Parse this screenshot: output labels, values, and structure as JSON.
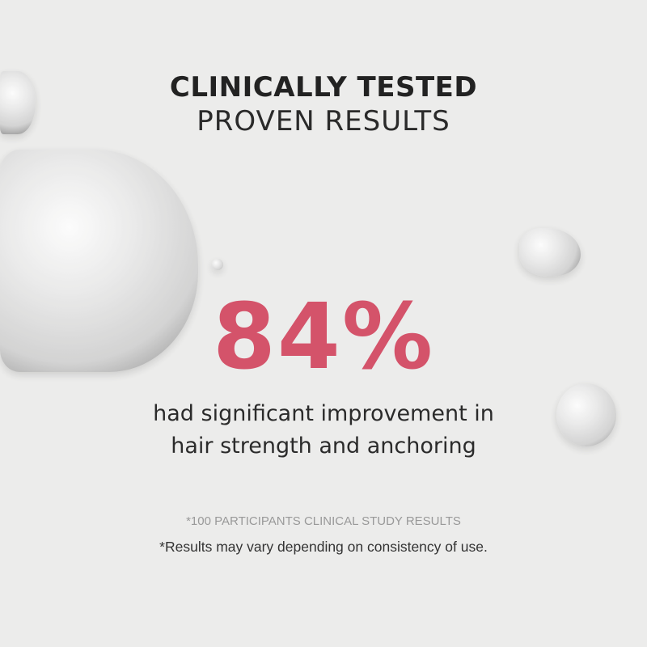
{
  "colors": {
    "accent": "#d4536a",
    "background": "#ececeb"
  },
  "heading": {
    "line1": "CLINICALLY TESTED",
    "line2": "PROVEN RESULTS"
  },
  "stat": {
    "value": "84%"
  },
  "description": {
    "line1": "had significant improvement in",
    "line2": "hair strength and anchoring"
  },
  "notes": {
    "study": "*100 PARTICIPANTS CLINICAL STUDY RESULTS",
    "disclaimer": "*Results may vary depending on consistency of use."
  }
}
